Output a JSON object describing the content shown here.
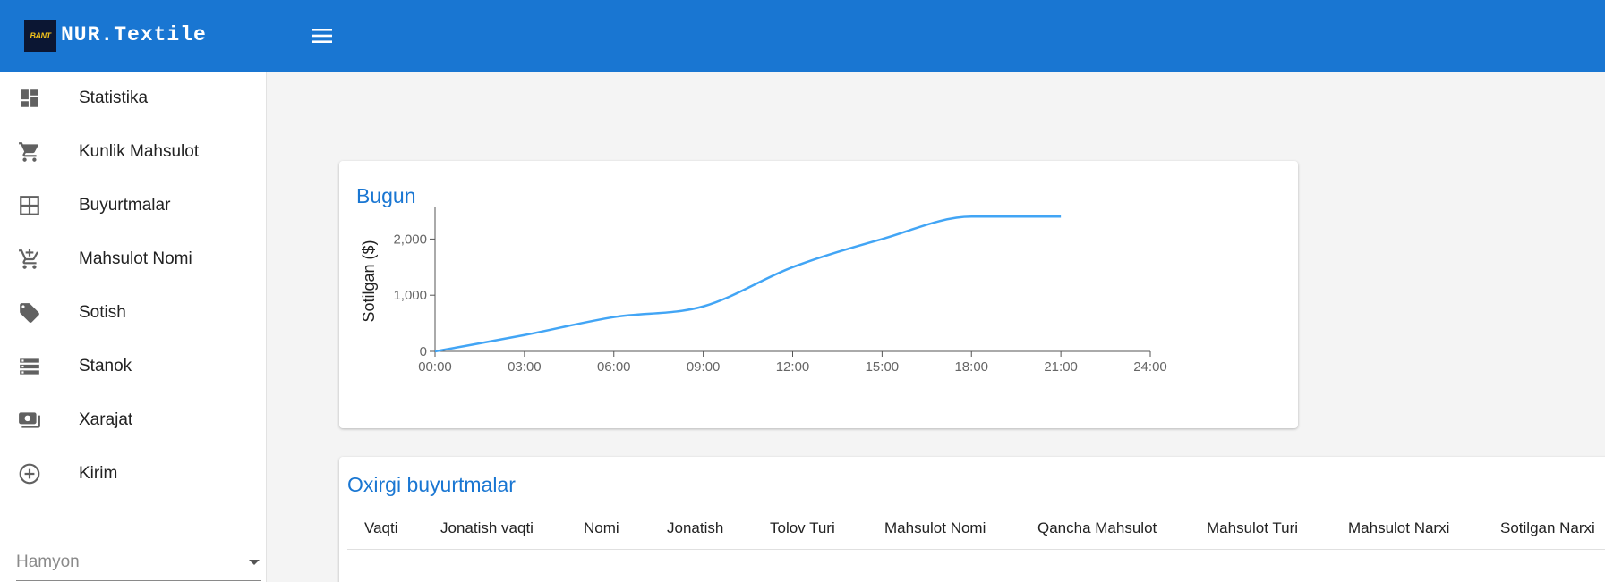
{
  "app": {
    "brand": "NUR.Textile",
    "logo_text": "BANT"
  },
  "colors": {
    "primary": "#1976d2",
    "line": "#42a5f5",
    "icon": "#616161"
  },
  "sidebar": {
    "items": [
      {
        "label": "Statistika",
        "icon": "dashboard-icon"
      },
      {
        "label": "Kunlik Mahsulot",
        "icon": "shopping-cart-icon"
      },
      {
        "label": "Buyurtmalar",
        "icon": "grid-icon"
      },
      {
        "label": "Mahsulot Nomi",
        "icon": "add-to-cart-icon"
      },
      {
        "label": "Sotish",
        "icon": "tag-icon"
      },
      {
        "label": "Stanok",
        "icon": "storage-icon"
      },
      {
        "label": "Xarajat",
        "icon": "money-icon"
      },
      {
        "label": "Kirim",
        "icon": "add-circle-icon"
      }
    ],
    "wallet_select": {
      "placeholder": "Hamyon"
    }
  },
  "chart_card": {
    "title": "Bugun"
  },
  "chart_data": {
    "type": "line",
    "title": "Bugun",
    "xlabel": "",
    "ylabel": "Sotilgan ($)",
    "x_ticks": [
      "00:00",
      "03:00",
      "06:00",
      "09:00",
      "12:00",
      "15:00",
      "18:00",
      "21:00",
      "24:00"
    ],
    "y_ticks": [
      "0",
      "1,000",
      "2,000"
    ],
    "xlim": [
      0,
      24
    ],
    "ylim": [
      0,
      2500
    ],
    "series": [
      {
        "x": [
          0,
          3,
          6,
          9,
          12,
          15,
          18,
          21
        ],
        "y": [
          0,
          290,
          610,
          800,
          1500,
          2000,
          2400,
          2400
        ]
      }
    ],
    "grid": false
  },
  "orders": {
    "title": "Oxirgi buyurtmalar",
    "columns": [
      "Vaqti",
      "Jonatish vaqti",
      "Nomi",
      "Jonatish",
      "Tolov Turi",
      "Mahsulot Nomi",
      "Qancha Mahsulot",
      "Mahsulot Turi",
      "Mahsulot Narxi",
      "Sotilgan Narxi"
    ]
  }
}
